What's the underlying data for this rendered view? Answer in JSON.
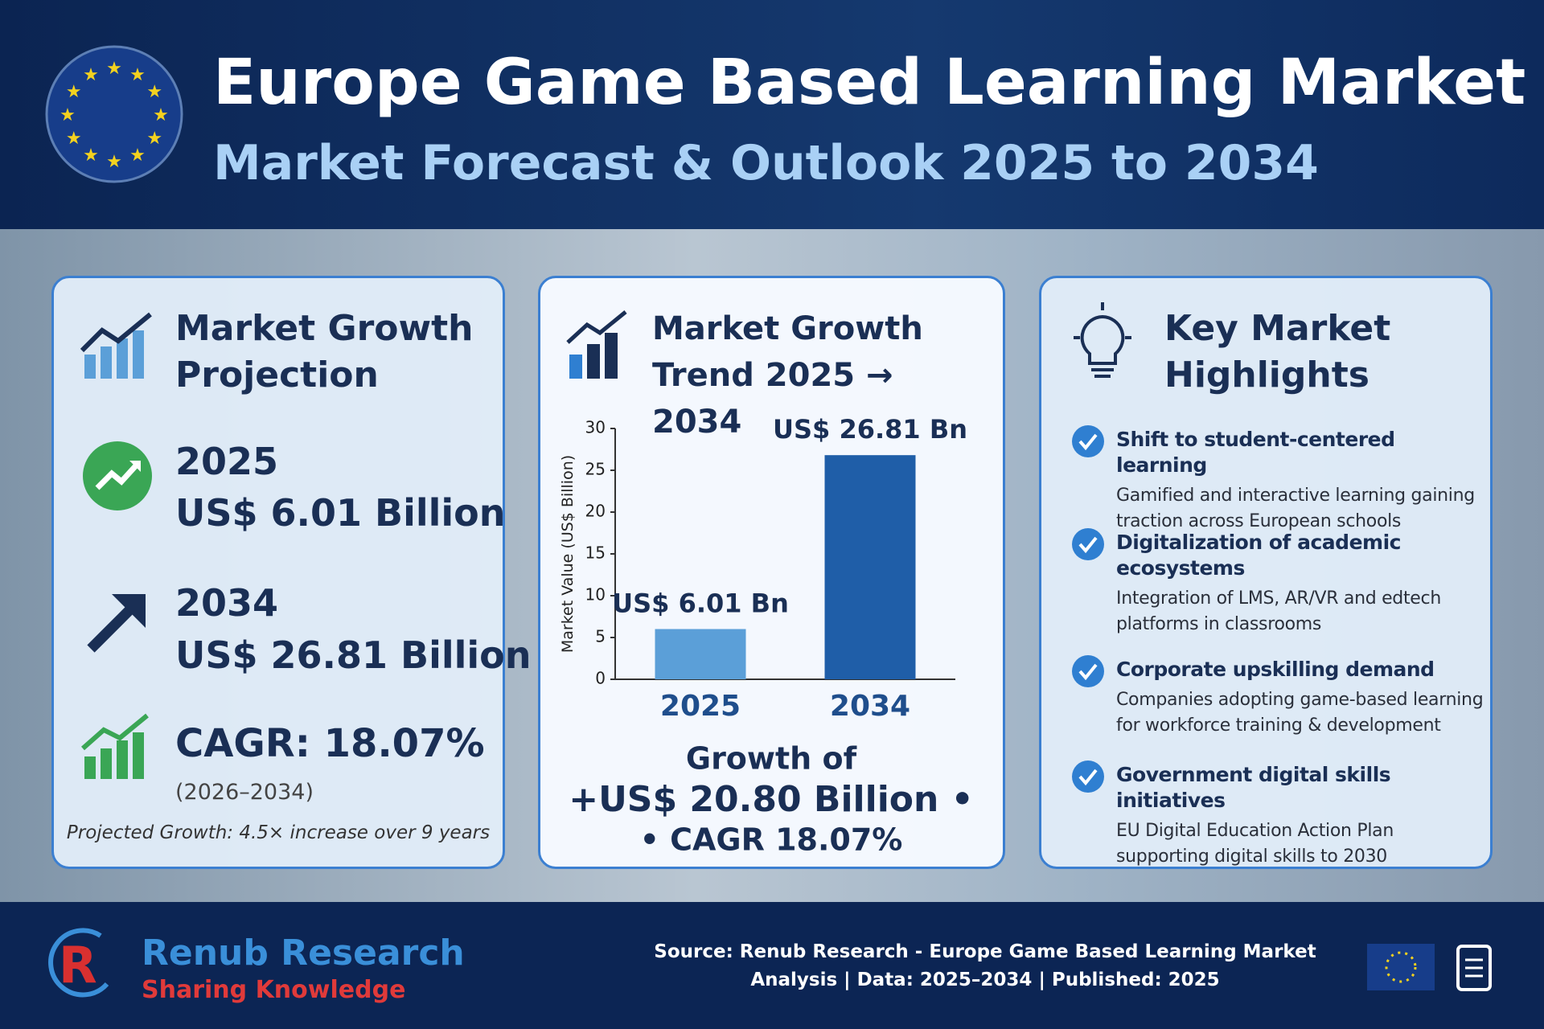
{
  "header": {
    "title": "Europe Game Based Learning Market",
    "subtitle": "Market Forecast & Outlook 2025 to 2034"
  },
  "projection": {
    "title": "Market Growth Projection",
    "items": [
      {
        "year": "2025",
        "value": "US$ 6.01 Billion"
      },
      {
        "year": "2034",
        "value": "US$ 26.81 Billion"
      }
    ],
    "cagr": "CAGR: 18.07%",
    "cagr_period": "(2026–2034)",
    "note": "Projected Growth: 4.5× increase over 9 years"
  },
  "trend": {
    "title": "Market Growth Trend 2025 → 2034",
    "growth_lines": [
      "Growth of",
      "+US$ 20.80 Billion •",
      "• CAGR 18.07%"
    ]
  },
  "chart_data": {
    "type": "bar",
    "y_label": "Market Value (US$ Billion)",
    "categories": [
      "2025",
      "2034"
    ],
    "values": [
      6.01,
      26.81
    ],
    "value_labels": [
      "US$ 6.01 Bn",
      "US$ 26.81 Bn"
    ],
    "colors": [
      "#5b9fd8",
      "#1f5ea8"
    ],
    "ylim": [
      0,
      30
    ],
    "yticks": [
      0,
      5,
      10,
      15,
      20,
      25,
      30
    ],
    "grid": false
  },
  "highlights": {
    "title": "Key Market Highlights",
    "items": [
      {
        "heading": "Shift to student-centered learning",
        "text": "Gamified and interactive learning gaining traction across European schools"
      },
      {
        "heading": "Digitalization of academic ecosystems",
        "text": "Integration of LMS, AR/VR and edtech platforms in classrooms"
      },
      {
        "heading": "Corporate upskilling demand",
        "text": "Companies adopting game-based learning for workforce training & development"
      },
      {
        "heading": "Government digital skills initiatives",
        "text": "EU Digital Education Action Plan supporting digital skills to 2030"
      }
    ]
  },
  "footer": {
    "brand": "Renub Research",
    "tagline": "Sharing Knowledge",
    "source": "Source: Renub Research - Europe Game Based Learning Market Analysis | Data: 2025–2034 | Published: 2025"
  }
}
